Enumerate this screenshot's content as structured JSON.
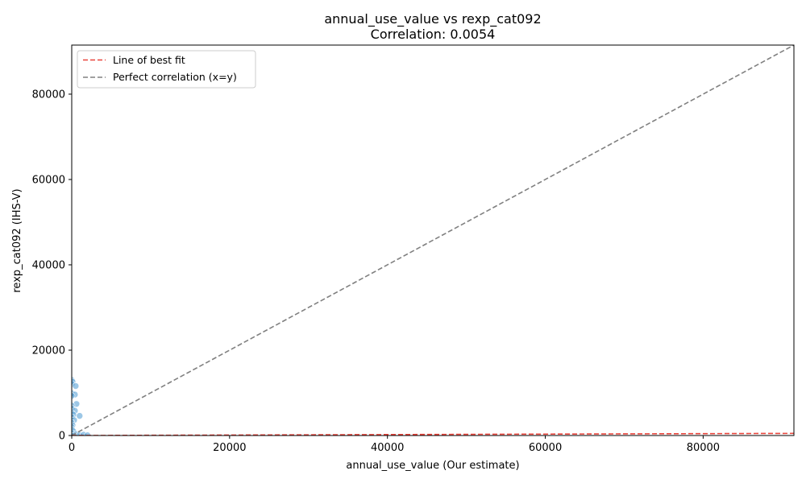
{
  "chart_data": {
    "type": "scatter",
    "title": "annual_use_value vs rexp_cat092",
    "subtitle": "Correlation: 0.0054",
    "xlabel": "annual_use_value (Our estimate)",
    "ylabel": "rexp_cat092 (IHS-V)",
    "xlim": [
      0,
      91500
    ],
    "ylim": [
      0,
      91500
    ],
    "x_ticks": [
      {
        "value": 0,
        "label": "0"
      },
      {
        "value": 20000,
        "label": "20000"
      },
      {
        "value": 40000,
        "label": "40000"
      },
      {
        "value": 60000,
        "label": "60000"
      },
      {
        "value": 80000,
        "label": "80000"
      }
    ],
    "y_ticks": [
      {
        "value": 0,
        "label": "0"
      },
      {
        "value": 20000,
        "label": "20000"
      },
      {
        "value": 40000,
        "label": "40000"
      },
      {
        "value": 60000,
        "label": "60000"
      },
      {
        "value": 80000,
        "label": "80000"
      }
    ],
    "grid": false,
    "legend_position": "top-left",
    "legend": [
      {
        "label": "Line of best fit",
        "color": "#e8453c",
        "style": "dashed"
      },
      {
        "label": "Perfect correlation (x=y)",
        "color": "#808080",
        "style": "dashed"
      }
    ],
    "point_color": "#5aa2d6",
    "points": [
      {
        "x": 0,
        "y": 13000
      },
      {
        "x": 100,
        "y": 12600
      },
      {
        "x": 0,
        "y": 12100
      },
      {
        "x": 500,
        "y": 11600
      },
      {
        "x": 0,
        "y": 9900
      },
      {
        "x": 400,
        "y": 9600
      },
      {
        "x": 0,
        "y": 9300
      },
      {
        "x": 600,
        "y": 7400
      },
      {
        "x": 0,
        "y": 7000
      },
      {
        "x": 0,
        "y": 6300
      },
      {
        "x": 400,
        "y": 5800
      },
      {
        "x": 0,
        "y": 5300
      },
      {
        "x": 200,
        "y": 4900
      },
      {
        "x": 1000,
        "y": 4600
      },
      {
        "x": 0,
        "y": 4300
      },
      {
        "x": 300,
        "y": 3600
      },
      {
        "x": 0,
        "y": 3000
      },
      {
        "x": 100,
        "y": 2400
      },
      {
        "x": 0,
        "y": 2000
      },
      {
        "x": 0,
        "y": 1500
      },
      {
        "x": 200,
        "y": 1000
      },
      {
        "x": 0,
        "y": 600
      },
      {
        "x": 500,
        "y": 300
      },
      {
        "x": 1000,
        "y": 100
      },
      {
        "x": 1500,
        "y": 200
      },
      {
        "x": 2000,
        "y": 50
      },
      {
        "x": 0,
        "y": 0
      },
      {
        "x": 300,
        "y": 0
      }
    ],
    "best_fit_line": {
      "x": [
        0,
        91500
      ],
      "y": [
        0,
        500
      ]
    },
    "identity_line": {
      "x": [
        0,
        91500
      ],
      "y": [
        0,
        91500
      ]
    }
  }
}
